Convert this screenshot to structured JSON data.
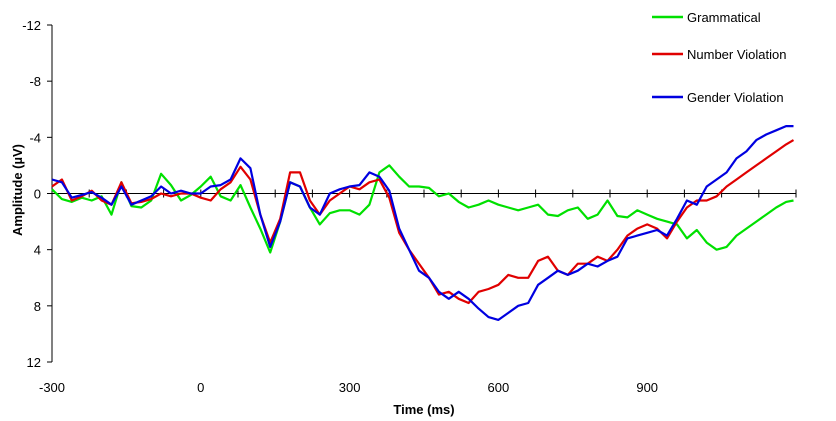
{
  "chart_data": {
    "type": "line",
    "title": "",
    "xlabel": "Time (ms)",
    "ylabel": "Amplitude (µV)",
    "xlim": [
      -300,
      1200
    ],
    "ylim": [
      -12,
      12
    ],
    "y_axis_inverted": true,
    "x_ticks": [
      -300,
      0,
      300,
      600,
      900
    ],
    "x_tick_labels": [
      "-300",
      "0",
      "300",
      "600",
      "900"
    ],
    "y_ticks": [
      -12,
      -8,
      -4,
      0,
      4,
      8,
      12
    ],
    "y_tick_labels": [
      "-12",
      "-8",
      "-4",
      "0",
      "4",
      "8",
      "12"
    ],
    "grid": false,
    "legend_position": "top-right",
    "series": [
      {
        "name": "Grammatical",
        "color": "#00e000",
        "x": [
          -300,
          -280,
          -260,
          -240,
          -220,
          -200,
          -180,
          -160,
          -140,
          -120,
          -100,
          -80,
          -60,
          -40,
          -20,
          0,
          20,
          40,
          60,
          80,
          100,
          120,
          140,
          160,
          180,
          200,
          220,
          240,
          260,
          280,
          300,
          320,
          340,
          360,
          380,
          400,
          420,
          440,
          460,
          480,
          500,
          520,
          540,
          560,
          580,
          600,
          620,
          640,
          660,
          680,
          700,
          720,
          740,
          760,
          780,
          800,
          820,
          840,
          860,
          880,
          900,
          920,
          940,
          960,
          980,
          1000,
          1020,
          1040,
          1060,
          1080,
          1100,
          1120,
          1140,
          1160,
          1180,
          1195
        ],
        "y": [
          -0.3,
          0.4,
          0.6,
          0.3,
          0.5,
          0.2,
          1.5,
          -0.8,
          0.9,
          1.0,
          0.5,
          -1.4,
          -0.6,
          0.5,
          0.1,
          -0.5,
          -1.2,
          0.2,
          0.5,
          -0.6,
          1.0,
          2.5,
          4.2,
          2.0,
          -0.8,
          -0.5,
          1.0,
          2.2,
          1.4,
          1.2,
          1.2,
          1.5,
          0.8,
          -1.5,
          -2.0,
          -1.2,
          -0.5,
          -0.5,
          -0.4,
          0.2,
          0.0,
          0.6,
          1.0,
          0.8,
          0.5,
          0.8,
          1.0,
          1.2,
          1.0,
          0.8,
          1.5,
          1.6,
          1.2,
          1.0,
          1.8,
          1.5,
          0.5,
          1.6,
          1.7,
          1.2,
          1.5,
          1.8,
          2.0,
          2.2,
          3.2,
          2.6,
          3.5,
          4.0,
          3.8,
          3.0,
          2.5,
          2.0,
          1.5,
          1.0,
          0.6,
          0.5
        ]
      },
      {
        "name": "Number Violation",
        "color": "#e00000",
        "x": [
          -300,
          -280,
          -260,
          -240,
          -220,
          -200,
          -180,
          -160,
          -140,
          -120,
          -100,
          -80,
          -60,
          -40,
          -20,
          0,
          20,
          40,
          60,
          80,
          100,
          120,
          140,
          160,
          180,
          200,
          220,
          240,
          260,
          280,
          300,
          320,
          340,
          360,
          380,
          400,
          420,
          440,
          460,
          480,
          500,
          520,
          540,
          560,
          580,
          600,
          620,
          640,
          660,
          680,
          700,
          720,
          740,
          760,
          780,
          800,
          820,
          840,
          860,
          880,
          900,
          920,
          940,
          960,
          980,
          1000,
          1020,
          1040,
          1060,
          1080,
          1100,
          1120,
          1140,
          1160,
          1180,
          1195
        ],
        "y": [
          -0.5,
          -1.0,
          0.5,
          0.2,
          -0.2,
          0.5,
          0.8,
          -0.8,
          0.7,
          0.6,
          0.4,
          0.0,
          0.2,
          0.0,
          0.0,
          0.3,
          0.5,
          -0.3,
          -0.8,
          -1.9,
          -1.0,
          1.5,
          3.5,
          1.8,
          -1.5,
          -1.5,
          0.5,
          1.5,
          0.5,
          0.0,
          -0.5,
          -0.3,
          -0.8,
          -1.0,
          0.3,
          2.8,
          4.0,
          5.0,
          6.0,
          7.2,
          7.0,
          7.5,
          7.8,
          7.0,
          6.8,
          6.5,
          5.8,
          6.0,
          6.0,
          4.8,
          4.5,
          5.5,
          5.8,
          5.0,
          5.0,
          4.5,
          4.8,
          4.0,
          3.0,
          2.5,
          2.2,
          2.5,
          3.2,
          2.0,
          1.0,
          0.5,
          0.5,
          0.2,
          -0.5,
          -1.0,
          -1.5,
          -2.0,
          -2.5,
          -3.0,
          -3.5,
          -3.8
        ]
      },
      {
        "name": "Gender Violation",
        "color": "#0000e0",
        "x": [
          -300,
          -280,
          -260,
          -240,
          -220,
          -200,
          -180,
          -160,
          -140,
          -120,
          -100,
          -80,
          -60,
          -40,
          -20,
          0,
          20,
          40,
          60,
          80,
          100,
          120,
          140,
          160,
          180,
          200,
          220,
          240,
          260,
          280,
          300,
          320,
          340,
          360,
          380,
          400,
          420,
          440,
          460,
          480,
          500,
          520,
          540,
          560,
          580,
          600,
          620,
          640,
          660,
          680,
          700,
          720,
          740,
          760,
          780,
          800,
          820,
          840,
          860,
          880,
          900,
          920,
          940,
          960,
          980,
          1000,
          1020,
          1040,
          1060,
          1080,
          1100,
          1120,
          1140,
          1160,
          1180,
          1195
        ],
        "y": [
          -1.0,
          -0.8,
          0.3,
          0.1,
          -0.1,
          0.3,
          0.8,
          -0.5,
          0.8,
          0.5,
          0.2,
          -0.5,
          0.0,
          -0.2,
          0.0,
          0.0,
          -0.5,
          -0.6,
          -1.0,
          -2.5,
          -1.8,
          1.5,
          3.8,
          2.0,
          -0.8,
          -0.5,
          1.0,
          1.5,
          0.0,
          -0.3,
          -0.5,
          -0.6,
          -1.5,
          -1.2,
          -0.2,
          2.5,
          4.0,
          5.5,
          6.0,
          7.0,
          7.5,
          7.0,
          7.5,
          8.2,
          8.8,
          9.0,
          8.5,
          8.0,
          7.8,
          6.5,
          6.0,
          5.5,
          5.8,
          5.5,
          5.0,
          5.2,
          4.8,
          4.5,
          3.2,
          3.0,
          2.8,
          2.6,
          3.0,
          1.8,
          0.5,
          0.8,
          -0.5,
          -1.0,
          -1.5,
          -2.5,
          -3.0,
          -3.8,
          -4.2,
          -4.5,
          -4.8,
          -4.8
        ]
      }
    ]
  }
}
